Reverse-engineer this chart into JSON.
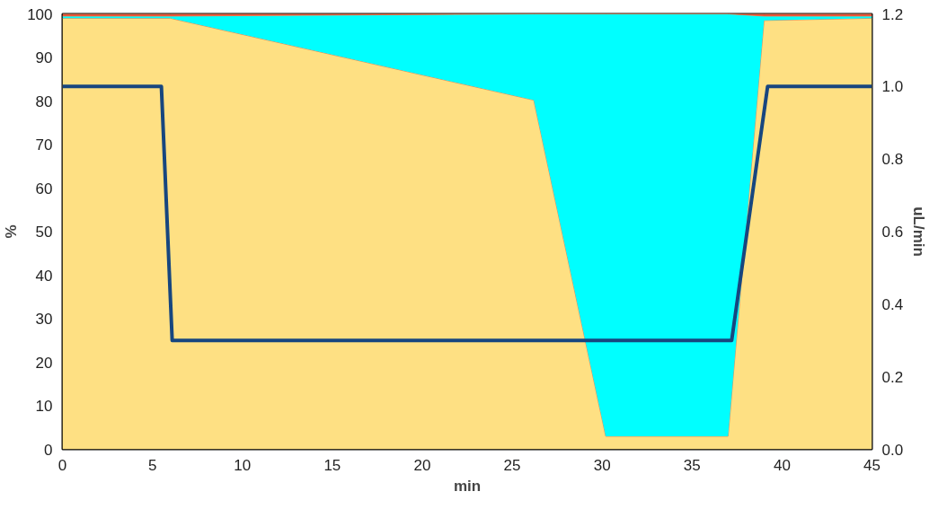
{
  "chart_data": {
    "type": "area",
    "stacked": true,
    "xlabel": "min",
    "ylabel": "%",
    "y2label": "uL/min",
    "x": [
      0,
      6,
      26.2,
      30.2,
      37,
      39,
      45
    ],
    "series": [
      {
        "color": "#fee083",
        "values": [
          99,
          99,
          80.2,
          3,
          3,
          98.5,
          99
        ]
      },
      {
        "color": "#00ffff",
        "values": [
          0.5,
          0.5,
          19.8,
          97,
          97,
          1,
          0.5
        ]
      },
      {
        "color": "#e8573b",
        "values": [
          0.5,
          0.5,
          0,
          0,
          0,
          0.5,
          0.5
        ]
      },
      {
        "type": "line",
        "axis": "y2",
        "color": "#17467f",
        "x": [
          0,
          5.5,
          6.1,
          37.2,
          39.2,
          45
        ],
        "values": [
          1,
          1,
          0.3,
          0.3,
          1,
          1
        ]
      }
    ],
    "xlim": [
      0,
      45
    ],
    "xticks": [
      0,
      5,
      10,
      15,
      20,
      25,
      30,
      35,
      40,
      45
    ],
    "ylim": [
      0,
      100
    ],
    "yticks": [
      0,
      10,
      20,
      30,
      40,
      50,
      60,
      70,
      80,
      90,
      100
    ],
    "y2lim": [
      0,
      1.2
    ],
    "y2ticks": [
      {
        "value": 0,
        "label": "0.0"
      },
      {
        "value": 0.2,
        "label": "0.2"
      },
      {
        "value": 0.4,
        "label": "0.4"
      },
      {
        "value": 0.6,
        "label": "0.6"
      },
      {
        "value": 0.8,
        "label": "0.8"
      },
      {
        "value": 1,
        "label": "1.0"
      },
      {
        "value": 1.2,
        "label": "1.2"
      }
    ],
    "grid": false
  }
}
